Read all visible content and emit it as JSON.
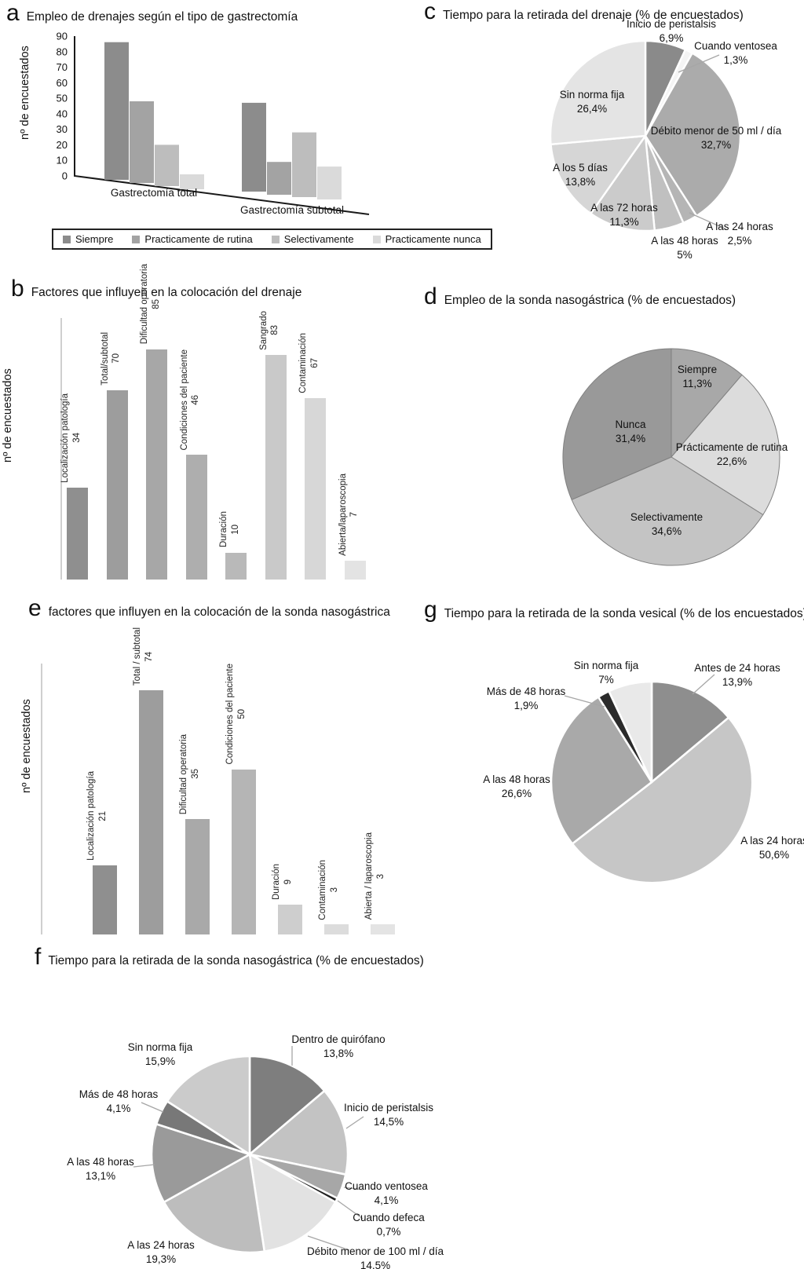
{
  "figure": {
    "background": "#ffffff"
  },
  "chart_data": [
    {
      "id": "a",
      "letter": "a",
      "type": "bar",
      "title": "Empleo de drenajes según el tipo de gastrectomía",
      "ylabel": "nº de encuestados",
      "xlabel": "",
      "ylim": [
        0,
        90
      ],
      "grid": false,
      "legend_position": "bottom",
      "yticks": [
        "90",
        "80",
        "70",
        "60",
        "50",
        "40",
        "30",
        "20",
        "10",
        "0"
      ],
      "legend": [
        "Siempre",
        "Practicamente de rutina",
        "Selectivamente",
        "Practicamente nunca"
      ],
      "colors": [
        "#8c8c8c",
        "#a3a3a3",
        "#bdbdbd",
        "#dadada"
      ],
      "groups": [
        {
          "label": "Gastrectomía total",
          "values": [
            86,
            48,
            20,
            1
          ]
        },
        {
          "label": "Gastrectomía subtotal",
          "values": [
            47,
            9,
            28,
            6
          ]
        }
      ]
    },
    {
      "id": "b",
      "letter": "b",
      "type": "bar",
      "title": "Factores que influyen en la colocación del drenaje",
      "ylabel": "nº de encuestados",
      "xlabel": "",
      "grid": false,
      "bars": [
        {
          "label": "Localización patología",
          "value": 34,
          "color": "#8f8f8f"
        },
        {
          "label": "Total/subtotal",
          "value": 70,
          "color": "#9d9d9d"
        },
        {
          "label": "Dificultad operatoria",
          "value": 85,
          "color": "#a7a7a7"
        },
        {
          "label": "Condiciones del paciente",
          "value": 46,
          "color": "#aeaeae"
        },
        {
          "label": "Duración",
          "value": 10,
          "color": "#b9b9b9"
        },
        {
          "label": "Sangrado",
          "value": 83,
          "color": "#c9c9c9"
        },
        {
          "label": "Contaminación",
          "value": 67,
          "color": "#d7d7d7"
        },
        {
          "label": "Abierta/laparoscopia",
          "value": 7,
          "color": "#e3e3e3"
        }
      ]
    },
    {
      "id": "c",
      "letter": "c",
      "type": "pie",
      "title": "Tiempo para la retirada del drenaje (% de encuestados)",
      "slices": [
        {
          "label": "Inicio de peristalsis",
          "pct": "6,9%",
          "value": 6.9,
          "color": "#8a8a8a"
        },
        {
          "label": "Cuando ventosea",
          "pct": "1,3%",
          "value": 1.3,
          "color": "#f4f4f4"
        },
        {
          "label": "Débito menor de 50 ml / día",
          "pct": "32,7%",
          "value": 32.7,
          "color": "#ababab"
        },
        {
          "label": "A las 24 horas",
          "pct": "2,5%",
          "value": 2.5,
          "color": "#b5b5b5"
        },
        {
          "label": "A las 48 horas",
          "pct": "5%",
          "value": 5,
          "color": "#c0c0c0"
        },
        {
          "label": "A las 72 horas",
          "pct": "11,3%",
          "value": 11.3,
          "color": "#cbcbcb"
        },
        {
          "label": "A los 5 días",
          "pct": "13,8%",
          "value": 13.8,
          "color": "#d6d6d6"
        },
        {
          "label": "Sin norma fija",
          "pct": "26,4%",
          "value": 26.4,
          "color": "#e4e4e4"
        }
      ]
    },
    {
      "id": "d",
      "letter": "d",
      "type": "pie",
      "title": "Empleo de la sonda nasogástrica (% de encuestados)",
      "slices": [
        {
          "label": "Siempre",
          "pct": "11,3%",
          "value": 11.3,
          "color": "#a8a8a8"
        },
        {
          "label": "Prácticamente de rutina",
          "pct": "22,6%",
          "value": 22.6,
          "color": "#dcdcdc"
        },
        {
          "label": "Selectivamente",
          "pct": "34,6%",
          "value": 34.6,
          "color": "#c4c4c4"
        },
        {
          "label": "Nunca",
          "pct": "31,4%",
          "value": 31.4,
          "color": "#999999"
        }
      ]
    },
    {
      "id": "e",
      "letter": "e",
      "type": "bar",
      "title": "factores que influyen en la colocación de la sonda nasogástrica",
      "ylabel": "nº de encuestados",
      "xlabel": "",
      "grid": false,
      "bars": [
        {
          "label": "Localización patología",
          "value": 21,
          "color": "#8f8f8f"
        },
        {
          "label": "Total / subtotal",
          "value": 74,
          "color": "#9d9d9d"
        },
        {
          "label": "Dificultad operatoria",
          "value": 35,
          "color": "#a9a9a9"
        },
        {
          "label": "Condiciones del paciente",
          "value": 50,
          "color": "#b5b5b5"
        },
        {
          "label": "Duración",
          "value": 9,
          "color": "#cecece"
        },
        {
          "label": "Contaminación",
          "value": 3,
          "color": "#dcdcdc"
        },
        {
          "label": "Abierta / laparoscopia",
          "value": 3,
          "color": "#e4e4e4"
        }
      ]
    },
    {
      "id": "f",
      "letter": "f",
      "type": "pie",
      "title": "Tiempo para la retirada de la sonda nasogástrica (% de encuestados)",
      "slices": [
        {
          "label": "Dentro de quirófano",
          "pct": "13,8%",
          "value": 13.8,
          "color": "#7e7e7e"
        },
        {
          "label": "Inicio de peristalsis",
          "pct": "14,5%",
          "value": 14.5,
          "color": "#c3c3c3"
        },
        {
          "label": "Cuando ventosea",
          "pct": "4,1%",
          "value": 4.1,
          "color": "#a7a7a7"
        },
        {
          "label": "Cuando defeca",
          "pct": "0,7%",
          "value": 0.7,
          "color": "#222222"
        },
        {
          "label": "Débito menor de 100 ml / día",
          "pct": "14,5%",
          "value": 14.5,
          "color": "#e2e2e2"
        },
        {
          "label": "A las 24 horas",
          "pct": "19,3%",
          "value": 19.3,
          "color": "#bdbdbd"
        },
        {
          "label": "A las 48 horas",
          "pct": "13,1%",
          "value": 13.1,
          "color": "#9a9a9a"
        },
        {
          "label": "Más de 48 horas",
          "pct": "4,1%",
          "value": 4.1,
          "color": "#787878"
        },
        {
          "label": "Sin norma fija",
          "pct": "15,9%",
          "value": 15.9,
          "color": "#cbcbcb"
        }
      ]
    },
    {
      "id": "g",
      "letter": "g",
      "type": "pie",
      "title": "Tiempo para la retirada de la sonda vesical (% de los encuestados)",
      "slices": [
        {
          "label": "Antes de 24 horas",
          "pct": "13,9%",
          "value": 13.9,
          "color": "#8e8e8e"
        },
        {
          "label": "A las 24 horas",
          "pct": "50,6%",
          "value": 50.6,
          "color": "#c6c6c6"
        },
        {
          "label": "A las 48 horas",
          "pct": "26,6%",
          "value": 26.6,
          "color": "#a9a9a9"
        },
        {
          "label": "Más de 48 horas",
          "pct": "1,9%",
          "value": 1.9,
          "color": "#2b2b2b"
        },
        {
          "label": "Sin norma fija",
          "pct": "7%",
          "value": 7,
          "color": "#e9e9e9"
        }
      ]
    }
  ]
}
